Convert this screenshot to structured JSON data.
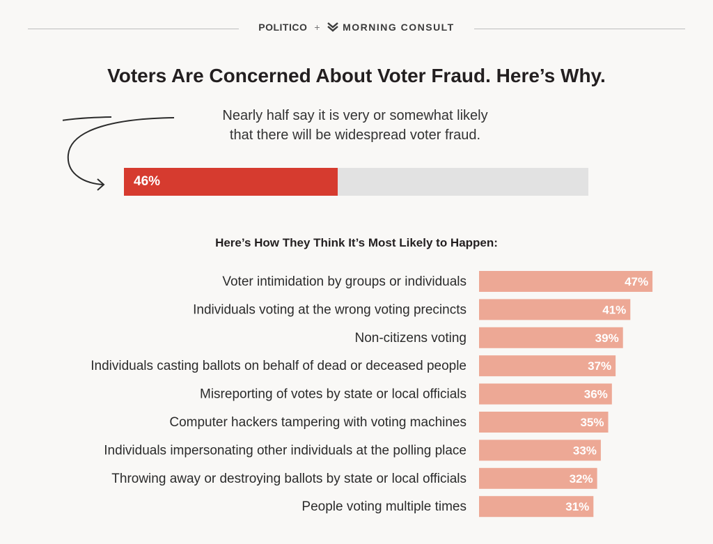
{
  "header": {
    "brand_left": "POLITICO",
    "plus": "+",
    "brand_right": "MORNING CONSULT"
  },
  "title": "Voters Are Concerned About Voter Fraud. Here’s Why.",
  "subtitle_line1": "Nearly half say it is very or somewhat likely",
  "subtitle_line2": "that there will be widespread voter fraud.",
  "top_bar": {
    "value": 46,
    "label": "46%",
    "max": 100,
    "fill_color": "#d63b2f",
    "track_color": "#e2e2e2"
  },
  "section_heading": "Here’s How They Think It’s Most Likely to Happen:",
  "colors": {
    "bar": "#eda895",
    "background": "#f9f8f6"
  },
  "chart_data": {
    "type": "bar",
    "orientation": "horizontal",
    "categories": [
      "Voter intimidation by groups or individuals",
      "Individuals voting at the wrong voting precincts",
      "Non-citizens voting",
      "Individuals casting ballots on behalf of dead or deceased people",
      "Misreporting of votes by state or local officials",
      "Computer hackers tampering with voting machines",
      "Individuals impersonating other individuals at the polling place",
      "Throwing away or destroying ballots by state or local officials",
      "People voting multiple times"
    ],
    "values": [
      47,
      41,
      39,
      37,
      36,
      35,
      33,
      32,
      31
    ],
    "value_labels": [
      "47%",
      "41%",
      "39%",
      "37%",
      "36%",
      "35%",
      "33%",
      "32%",
      "31%"
    ],
    "xlim": [
      0,
      100
    ]
  }
}
